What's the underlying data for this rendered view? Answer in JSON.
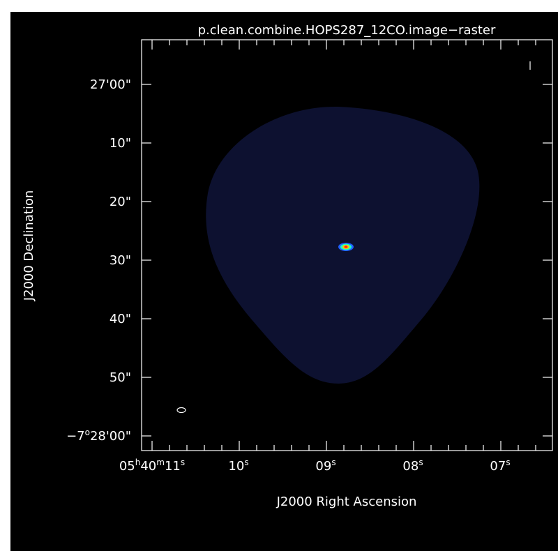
{
  "chart_data": {
    "type": "heatmap",
    "title": "p.clean.combine.HOPS287_12CO.image−raster",
    "xlabel": "J2000 Right Ascension",
    "ylabel": "J2000 Declination",
    "x_ticks": [
      {
        "pre": "05",
        "s1": "h",
        "mid": "40",
        "s2": "m",
        "post": "11",
        "s3": "s"
      },
      {
        "pre": "10",
        "s1": "s"
      },
      {
        "pre": "09",
        "s1": "s"
      },
      {
        "pre": "08",
        "s1": "s"
      },
      {
        "pre": "07",
        "s1": "s"
      }
    ],
    "y_ticks": [
      {
        "text": "27'00\""
      },
      {
        "text": "10\""
      },
      {
        "text": "20\""
      },
      {
        "text": "30\""
      },
      {
        "text": "40\""
      },
      {
        "text": "50\""
      },
      {
        "pre": "−7",
        "sup": "o",
        "post": "28'00\""
      }
    ],
    "colors": {
      "background": "#000000",
      "frame": "#ffffff",
      "field": "#0d1130",
      "source_outer": "#2060ff",
      "source_mid": "#20ffc0",
      "source_inner": "#ffc800",
      "source_core": "#ff2020"
    },
    "grid": false
  }
}
